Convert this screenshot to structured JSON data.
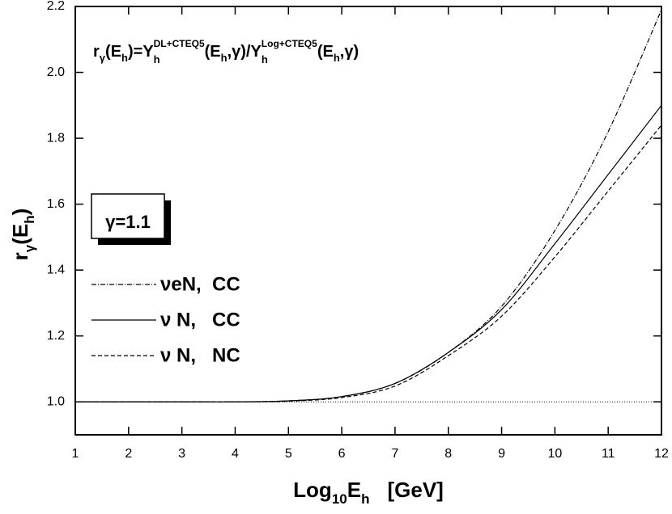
{
  "chart_data": {
    "type": "line",
    "title": [
      "r",
      "γ",
      "(E",
      "h",
      ")=Y",
      "h",
      "DL+CTEQ5",
      "(E",
      "h",
      ",γ)/Y",
      "h",
      "Log+CTEQ5",
      "(E",
      "h",
      ",γ)"
    ],
    "x_label": [
      "Log",
      "10",
      "E",
      "h",
      "[GeV]"
    ],
    "y_label": [
      "r",
      "γ",
      "(E",
      "h",
      ")"
    ],
    "annotation": "γ=1.1",
    "x": [
      1,
      2,
      3,
      4,
      5,
      6,
      7,
      8,
      9,
      10,
      11,
      12
    ],
    "series": [
      {
        "name": "νeN,  CC",
        "color": "#000000",
        "dash": "6 2 1 2",
        "values": [
          1.0,
          1.0,
          1.0,
          1.0,
          1.003,
          1.016,
          1.056,
          1.15,
          1.29,
          1.52,
          1.82,
          2.19
        ]
      },
      {
        "name": "ν N,   CC",
        "color": "#000000",
        "dash": "none",
        "values": [
          1.0,
          1.0,
          1.0,
          1.0,
          1.003,
          1.016,
          1.056,
          1.15,
          1.28,
          1.48,
          1.69,
          1.9
        ]
      },
      {
        "name": "ν N,   NC",
        "color": "#000000",
        "dash": "5 3",
        "values": [
          1.0,
          1.0,
          1.0,
          1.0,
          1.002,
          1.013,
          1.048,
          1.14,
          1.26,
          1.44,
          1.64,
          1.84
        ]
      }
    ],
    "reference_line": 1.0,
    "xlim": [
      1,
      12
    ],
    "ylim": [
      0.9,
      2.2
    ],
    "xticks": [
      1,
      2,
      3,
      4,
      5,
      6,
      7,
      8,
      9,
      10,
      11,
      12
    ],
    "yticks": [
      {
        "value": 1.0,
        "label": "1.0"
      },
      {
        "value": 1.2,
        "label": "1.2"
      },
      {
        "value": 1.4,
        "label": "1.4"
      },
      {
        "value": 1.6,
        "label": "1.6"
      },
      {
        "value": 1.8,
        "label": "1.8"
      },
      {
        "value": 2.0,
        "label": "2.0"
      },
      {
        "value": 2.2,
        "label": "2.2"
      }
    ]
  }
}
